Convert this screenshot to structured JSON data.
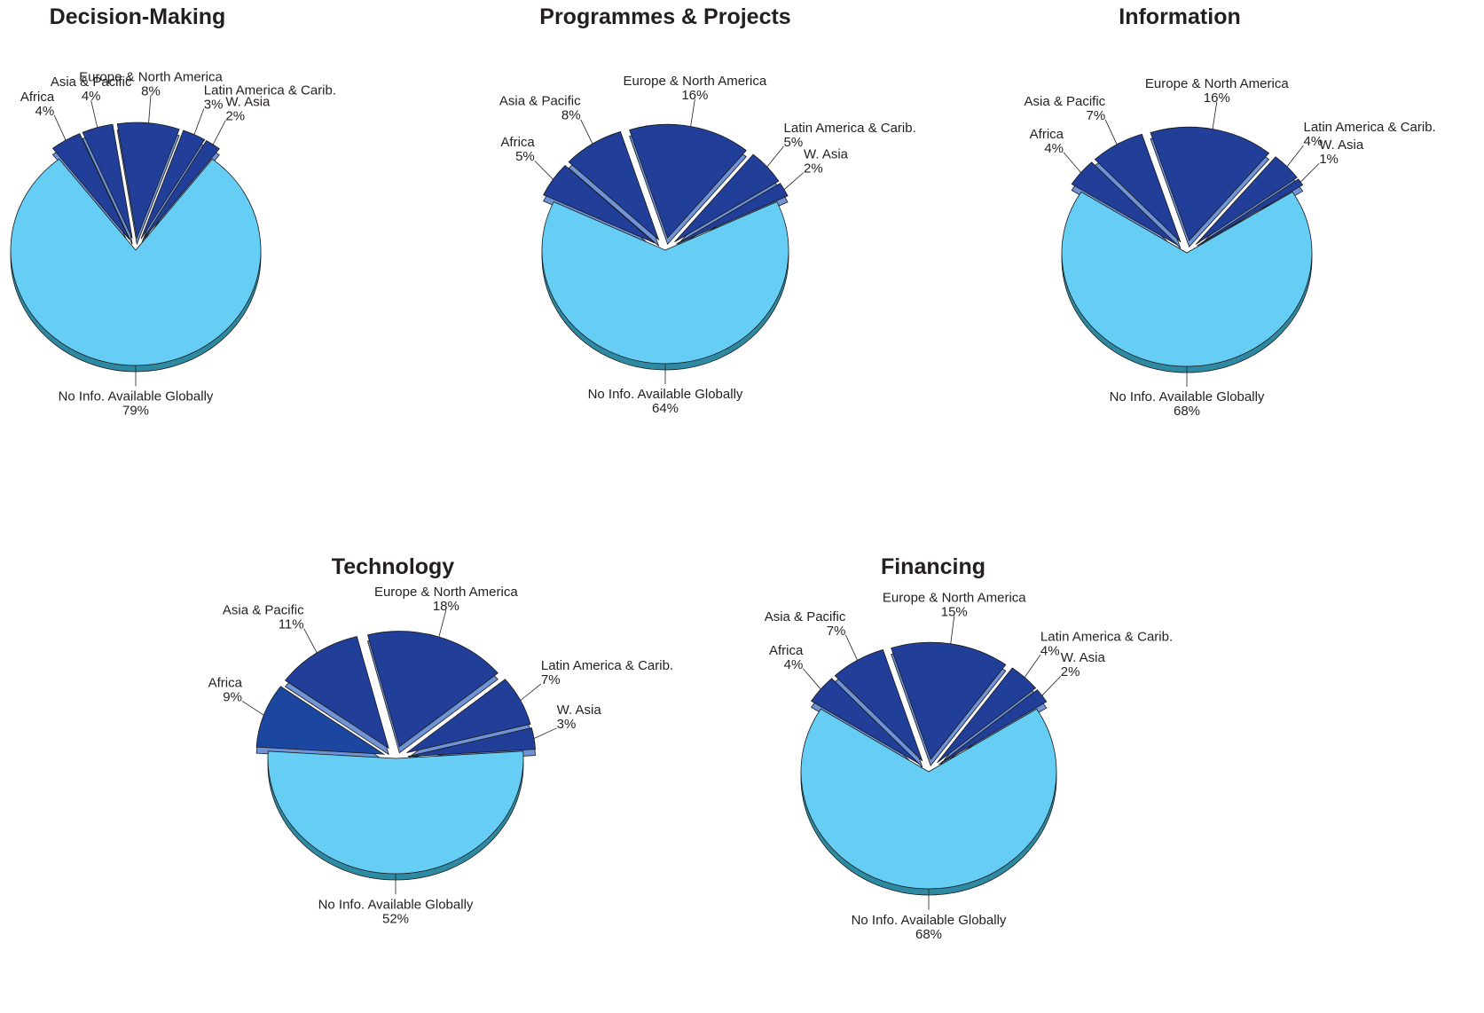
{
  "colors": {
    "region_slice": "#213e99",
    "region_slice_africa_technology": "#1c47a0",
    "region_side": "#6f93d5",
    "no_info_slice": "#66cdf5",
    "no_info_side": "#2e8aa3",
    "outline": "#1a1a1a",
    "text": "#231f20"
  },
  "chart_data": [
    {
      "type": "pie",
      "title": "Decision-Making",
      "slices": [
        {
          "label": "No Info. Available Globally",
          "value": 79,
          "value_label": "79%"
        },
        {
          "label": "Africa",
          "value": 4,
          "value_label": "4%"
        },
        {
          "label": "Asia & Pacific",
          "value": 4,
          "value_label": "4%"
        },
        {
          "label": "Europe & North America",
          "value": 8,
          "value_label": "8%"
        },
        {
          "label": "Latin America & Carib.",
          "value": 3,
          "value_label": "3%"
        },
        {
          "label": "W. Asia",
          "value": 2,
          "value_label": "2%"
        }
      ]
    },
    {
      "type": "pie",
      "title": "Programmes & Projects",
      "slices": [
        {
          "label": "No Info. Available Globally",
          "value": 64,
          "value_label": "64%"
        },
        {
          "label": "Africa",
          "value": 5,
          "value_label": "5%"
        },
        {
          "label": "Asia & Pacific",
          "value": 8,
          "value_label": "8%"
        },
        {
          "label": "Europe & North America",
          "value": 16,
          "value_label": "16%"
        },
        {
          "label": "Latin America & Carib.",
          "value": 5,
          "value_label": "5%"
        },
        {
          "label": "W. Asia",
          "value": 2,
          "value_label": "2%"
        }
      ]
    },
    {
      "type": "pie",
      "title": "Information",
      "slices": [
        {
          "label": "No Info. Available Globally",
          "value": 68,
          "value_label": "68%"
        },
        {
          "label": "Africa",
          "value": 4,
          "value_label": "4%"
        },
        {
          "label": "Asia & Pacific",
          "value": 7,
          "value_label": "7%"
        },
        {
          "label": "Europe & North America",
          "value": 16,
          "value_label": "16%"
        },
        {
          "label": "Latin America & Carib.",
          "value": 4,
          "value_label": "4%"
        },
        {
          "label": "W. Asia",
          "value": 1,
          "value_label": "1%"
        }
      ]
    },
    {
      "type": "pie",
      "title": "Technology",
      "slices": [
        {
          "label": "No Info. Available Globally",
          "value": 52,
          "value_label": "52%"
        },
        {
          "label": "Africa",
          "value": 9,
          "value_label": "9%"
        },
        {
          "label": "Asia & Pacific",
          "value": 11,
          "value_label": "11%"
        },
        {
          "label": "Europe & North America",
          "value": 18,
          "value_label": "18%"
        },
        {
          "label": "Latin America & Carib.",
          "value": 7,
          "value_label": "7%"
        },
        {
          "label": "W. Asia",
          "value": 3,
          "value_label": "3%"
        }
      ]
    },
    {
      "type": "pie",
      "title": "Financing",
      "slices": [
        {
          "label": "No Info. Available Globally",
          "value": 68,
          "value_label": "68%"
        },
        {
          "label": "Africa",
          "value": 4,
          "value_label": "4%"
        },
        {
          "label": "Asia & Pacific",
          "value": 7,
          "value_label": "7%"
        },
        {
          "label": "Europe & North America",
          "value": 15,
          "value_label": "15%"
        },
        {
          "label": "Latin America & Carib.",
          "value": 4,
          "value_label": "4%"
        },
        {
          "label": "W. Asia",
          "value": 2,
          "value_label": "2%"
        }
      ]
    }
  ]
}
